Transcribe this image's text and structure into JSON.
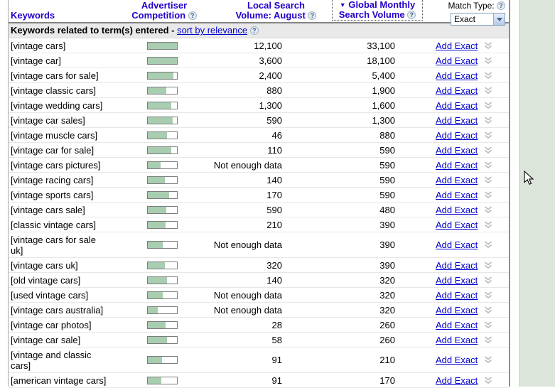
{
  "colors": {
    "header_blue": "#2200cc",
    "link_blue": "#0000cc",
    "bar_fill": "#a8cdb0",
    "panel_green": "#dce5da"
  },
  "icons": {
    "help": "?"
  },
  "header": {
    "keywords_label": "Keywords",
    "advertiser_line1": "Advertiser",
    "advertiser_line2": "Competition",
    "local_line1": "Local Search",
    "local_line2": "Volume: August",
    "global_sort_arrow": "▼",
    "global_line1": "Global Monthly",
    "global_line2": "Search Volume",
    "match_type_label": "Match Type:",
    "match_type_value": "Exact"
  },
  "subheader": {
    "text": "Keywords related to term(s) entered",
    "separator": " - ",
    "sort_link": "sort by relevance"
  },
  "add_label": "Add Exact",
  "rows": [
    {
      "keyword": "[vintage cars]",
      "competition": 1.0,
      "local": "12,100",
      "global": "33,100"
    },
    {
      "keyword": "[vintage car]",
      "competition": 1.0,
      "local": "3,600",
      "global": "18,100"
    },
    {
      "keyword": "[vintage cars for sale]",
      "competition": 0.88,
      "local": "2,400",
      "global": "5,400"
    },
    {
      "keyword": "[vintage classic cars]",
      "competition": 0.63,
      "local": "880",
      "global": "1,900"
    },
    {
      "keyword": "[vintage wedding cars]",
      "competition": 0.8,
      "local": "1,300",
      "global": "1,600"
    },
    {
      "keyword": "[vintage car sales]",
      "competition": 0.85,
      "local": "590",
      "global": "1,300"
    },
    {
      "keyword": "[vintage muscle cars]",
      "competition": 0.65,
      "local": "46",
      "global": "880"
    },
    {
      "keyword": "[vintage car for sale]",
      "competition": 0.8,
      "local": "110",
      "global": "590"
    },
    {
      "keyword": "[vintage cars pictures]",
      "competition": 0.45,
      "local": "Not enough data",
      "global": "590"
    },
    {
      "keyword": "[vintage racing cars]",
      "competition": 0.58,
      "local": "140",
      "global": "590"
    },
    {
      "keyword": "[vintage sports cars]",
      "competition": 0.72,
      "local": "170",
      "global": "590"
    },
    {
      "keyword": "[vintage cars sale]",
      "competition": 0.63,
      "local": "590",
      "global": "480"
    },
    {
      "keyword": "[classic vintage cars]",
      "competition": 0.62,
      "local": "210",
      "global": "390"
    },
    {
      "keyword": "[vintage cars for sale uk]",
      "competition": 0.52,
      "local": "Not enough data",
      "global": "390",
      "two_line": true
    },
    {
      "keyword": "[vintage cars uk]",
      "competition": 0.58,
      "local": "320",
      "global": "390"
    },
    {
      "keyword": "[old vintage cars]",
      "competition": 0.65,
      "local": "140",
      "global": "320"
    },
    {
      "keyword": "[used vintage cars]",
      "competition": 0.52,
      "local": "Not enough data",
      "global": "320"
    },
    {
      "keyword": "[vintage cars australia]",
      "competition": 0.35,
      "local": "Not enough data",
      "global": "320"
    },
    {
      "keyword": "[vintage car photos]",
      "competition": 0.62,
      "local": "28",
      "global": "260"
    },
    {
      "keyword": "[vintage car sale]",
      "competition": 0.65,
      "local": "58",
      "global": "260"
    },
    {
      "keyword": "[vintage and classic cars]",
      "competition": 0.48,
      "local": "91",
      "global": "210",
      "two_line": true
    },
    {
      "keyword": "[american vintage cars]",
      "competition": 0.47,
      "local": "91",
      "global": "170"
    }
  ]
}
